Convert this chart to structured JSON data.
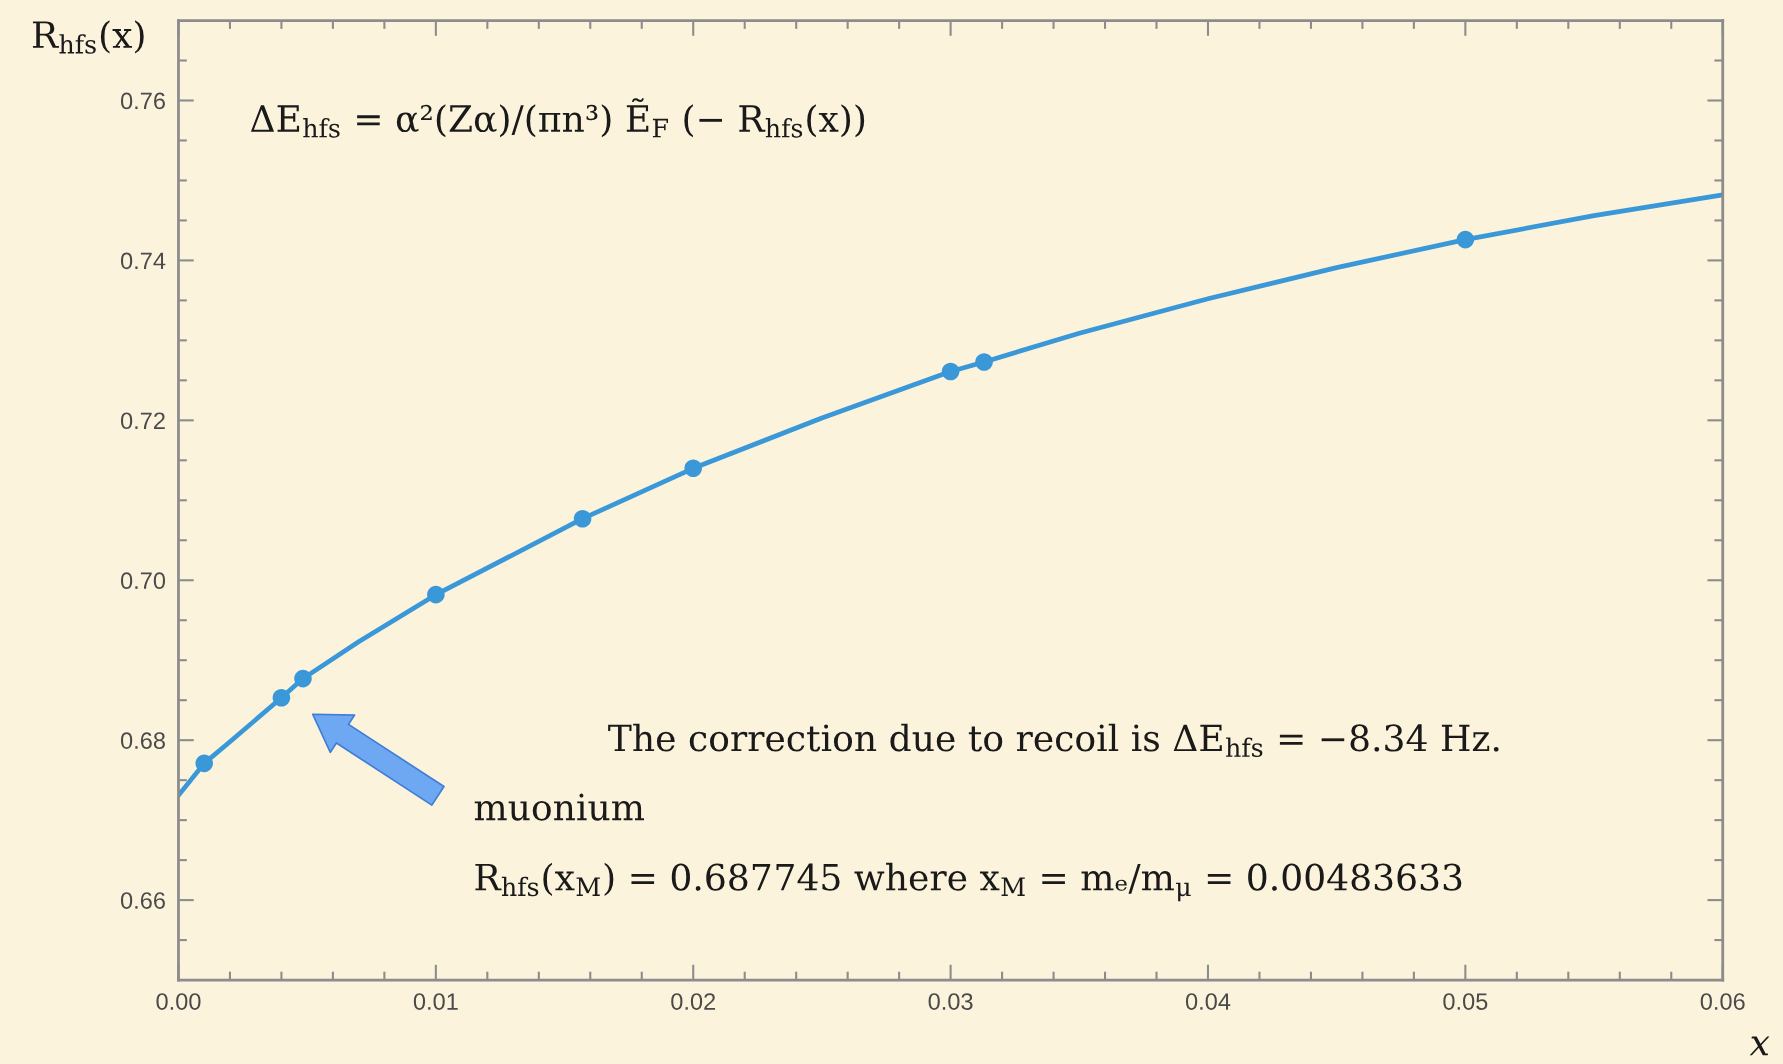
{
  "chart_data": {
    "type": "line",
    "xlabel": "x",
    "ylabel": "R$_{hfs}$(x)",
    "annotations": [
      "ΔE$_{hfs}$ = α²(Zα)/(πn³) Ẽ$_{F}$ (− R$_{hfs}$(x))",
      "The correction due to recoil is ΔE$_{hfs}$ = −8.34 Hz.",
      "muonium",
      "R$_{hfs}$(x$_{M}$) = 0.687745 where x$_{M}$ = mₑ/m$_{μ}$ = 0.00483633"
    ],
    "xlim": [
      0,
      0.06
    ],
    "ylim": [
      0.65,
      0.77
    ],
    "xticks": [
      {
        "value": 0,
        "label": "0.00"
      },
      0.01,
      0.02,
      0.03,
      0.04,
      0.05,
      0.06,
      {
        "value": 0.002,
        "label": null
      },
      {
        "value": 0.004,
        "label": null
      },
      {
        "value": 0.006,
        "label": null
      },
      {
        "value": 0.008,
        "label": null
      },
      {
        "value": 0.012,
        "label": null
      },
      {
        "value": 0.014,
        "label": null
      },
      {
        "value": 0.016,
        "label": null
      },
      {
        "value": 0.018,
        "label": null
      },
      {
        "value": 0.022,
        "label": null
      },
      {
        "value": 0.024,
        "label": null
      },
      {
        "value": 0.026,
        "label": null
      },
      {
        "value": 0.028,
        "label": null
      },
      {
        "value": 0.032,
        "label": null
      },
      {
        "value": 0.034,
        "label": null
      },
      {
        "value": 0.036,
        "label": null
      },
      {
        "value": 0.038,
        "label": null
      },
      {
        "value": 0.042,
        "label": null
      },
      {
        "value": 0.044,
        "label": null
      },
      {
        "value": 0.046,
        "label": null
      },
      {
        "value": 0.048,
        "label": null
      },
      {
        "value": 0.052,
        "label": null
      },
      {
        "value": 0.054,
        "label": null
      },
      {
        "value": 0.056,
        "label": null
      },
      {
        "value": 0.058,
        "label": null
      }
    ],
    "yticks": [
      0.66,
      0.68,
      {
        "value": 0.7,
        "label": "0.70"
      },
      0.72,
      0.74,
      0.76,
      {
        "value": 0.655,
        "label": null
      },
      {
        "value": 0.665,
        "label": null
      },
      {
        "value": 0.67,
        "label": null
      },
      {
        "value": 0.675,
        "label": null
      },
      {
        "value": 0.685,
        "label": null
      },
      {
        "value": 0.69,
        "label": null
      },
      {
        "value": 0.695,
        "label": null
      },
      {
        "value": 0.705,
        "label": null
      },
      {
        "value": 0.71,
        "label": null
      },
      {
        "value": 0.715,
        "label": null
      },
      {
        "value": 0.725,
        "label": null
      },
      {
        "value": 0.73,
        "label": null
      },
      {
        "value": 0.735,
        "label": null
      },
      {
        "value": 0.745,
        "label": null
      },
      {
        "value": 0.75,
        "label": null
      },
      {
        "value": 0.755,
        "label": null
      },
      {
        "value": 0.765,
        "label": null
      }
    ],
    "series": [
      {
        "color": "#3a98d8",
        "x": [
          0,
          0.001,
          0.002,
          0.004,
          0.00483633,
          0.007,
          0.01,
          0.0157,
          0.02,
          0.025,
          0.03,
          0.0313,
          0.035,
          0.04,
          0.045,
          0.05,
          0.055,
          0.06
        ],
        "values": [
          0.6731,
          0.6771,
          0.6798,
          0.6853,
          0.6877,
          0.6923,
          0.6982,
          0.7077,
          0.714,
          0.7203,
          0.7261,
          0.7273,
          0.7309,
          0.7352,
          0.7391,
          0.7426,
          0.7456,
          0.7482
        ]
      },
      {
        "type": "scatter",
        "marker": "circle",
        "color": "#3a98d8",
        "x": [
          0.001,
          0.004,
          0.00483633,
          0.01,
          0.0157,
          0.02,
          0.03,
          0.0313,
          0.05
        ],
        "values": [
          0.6771,
          0.6853,
          0.6877,
          0.6982,
          0.7077,
          0.714,
          0.7261,
          0.7273,
          0.7426
        ]
      }
    ]
  }
}
